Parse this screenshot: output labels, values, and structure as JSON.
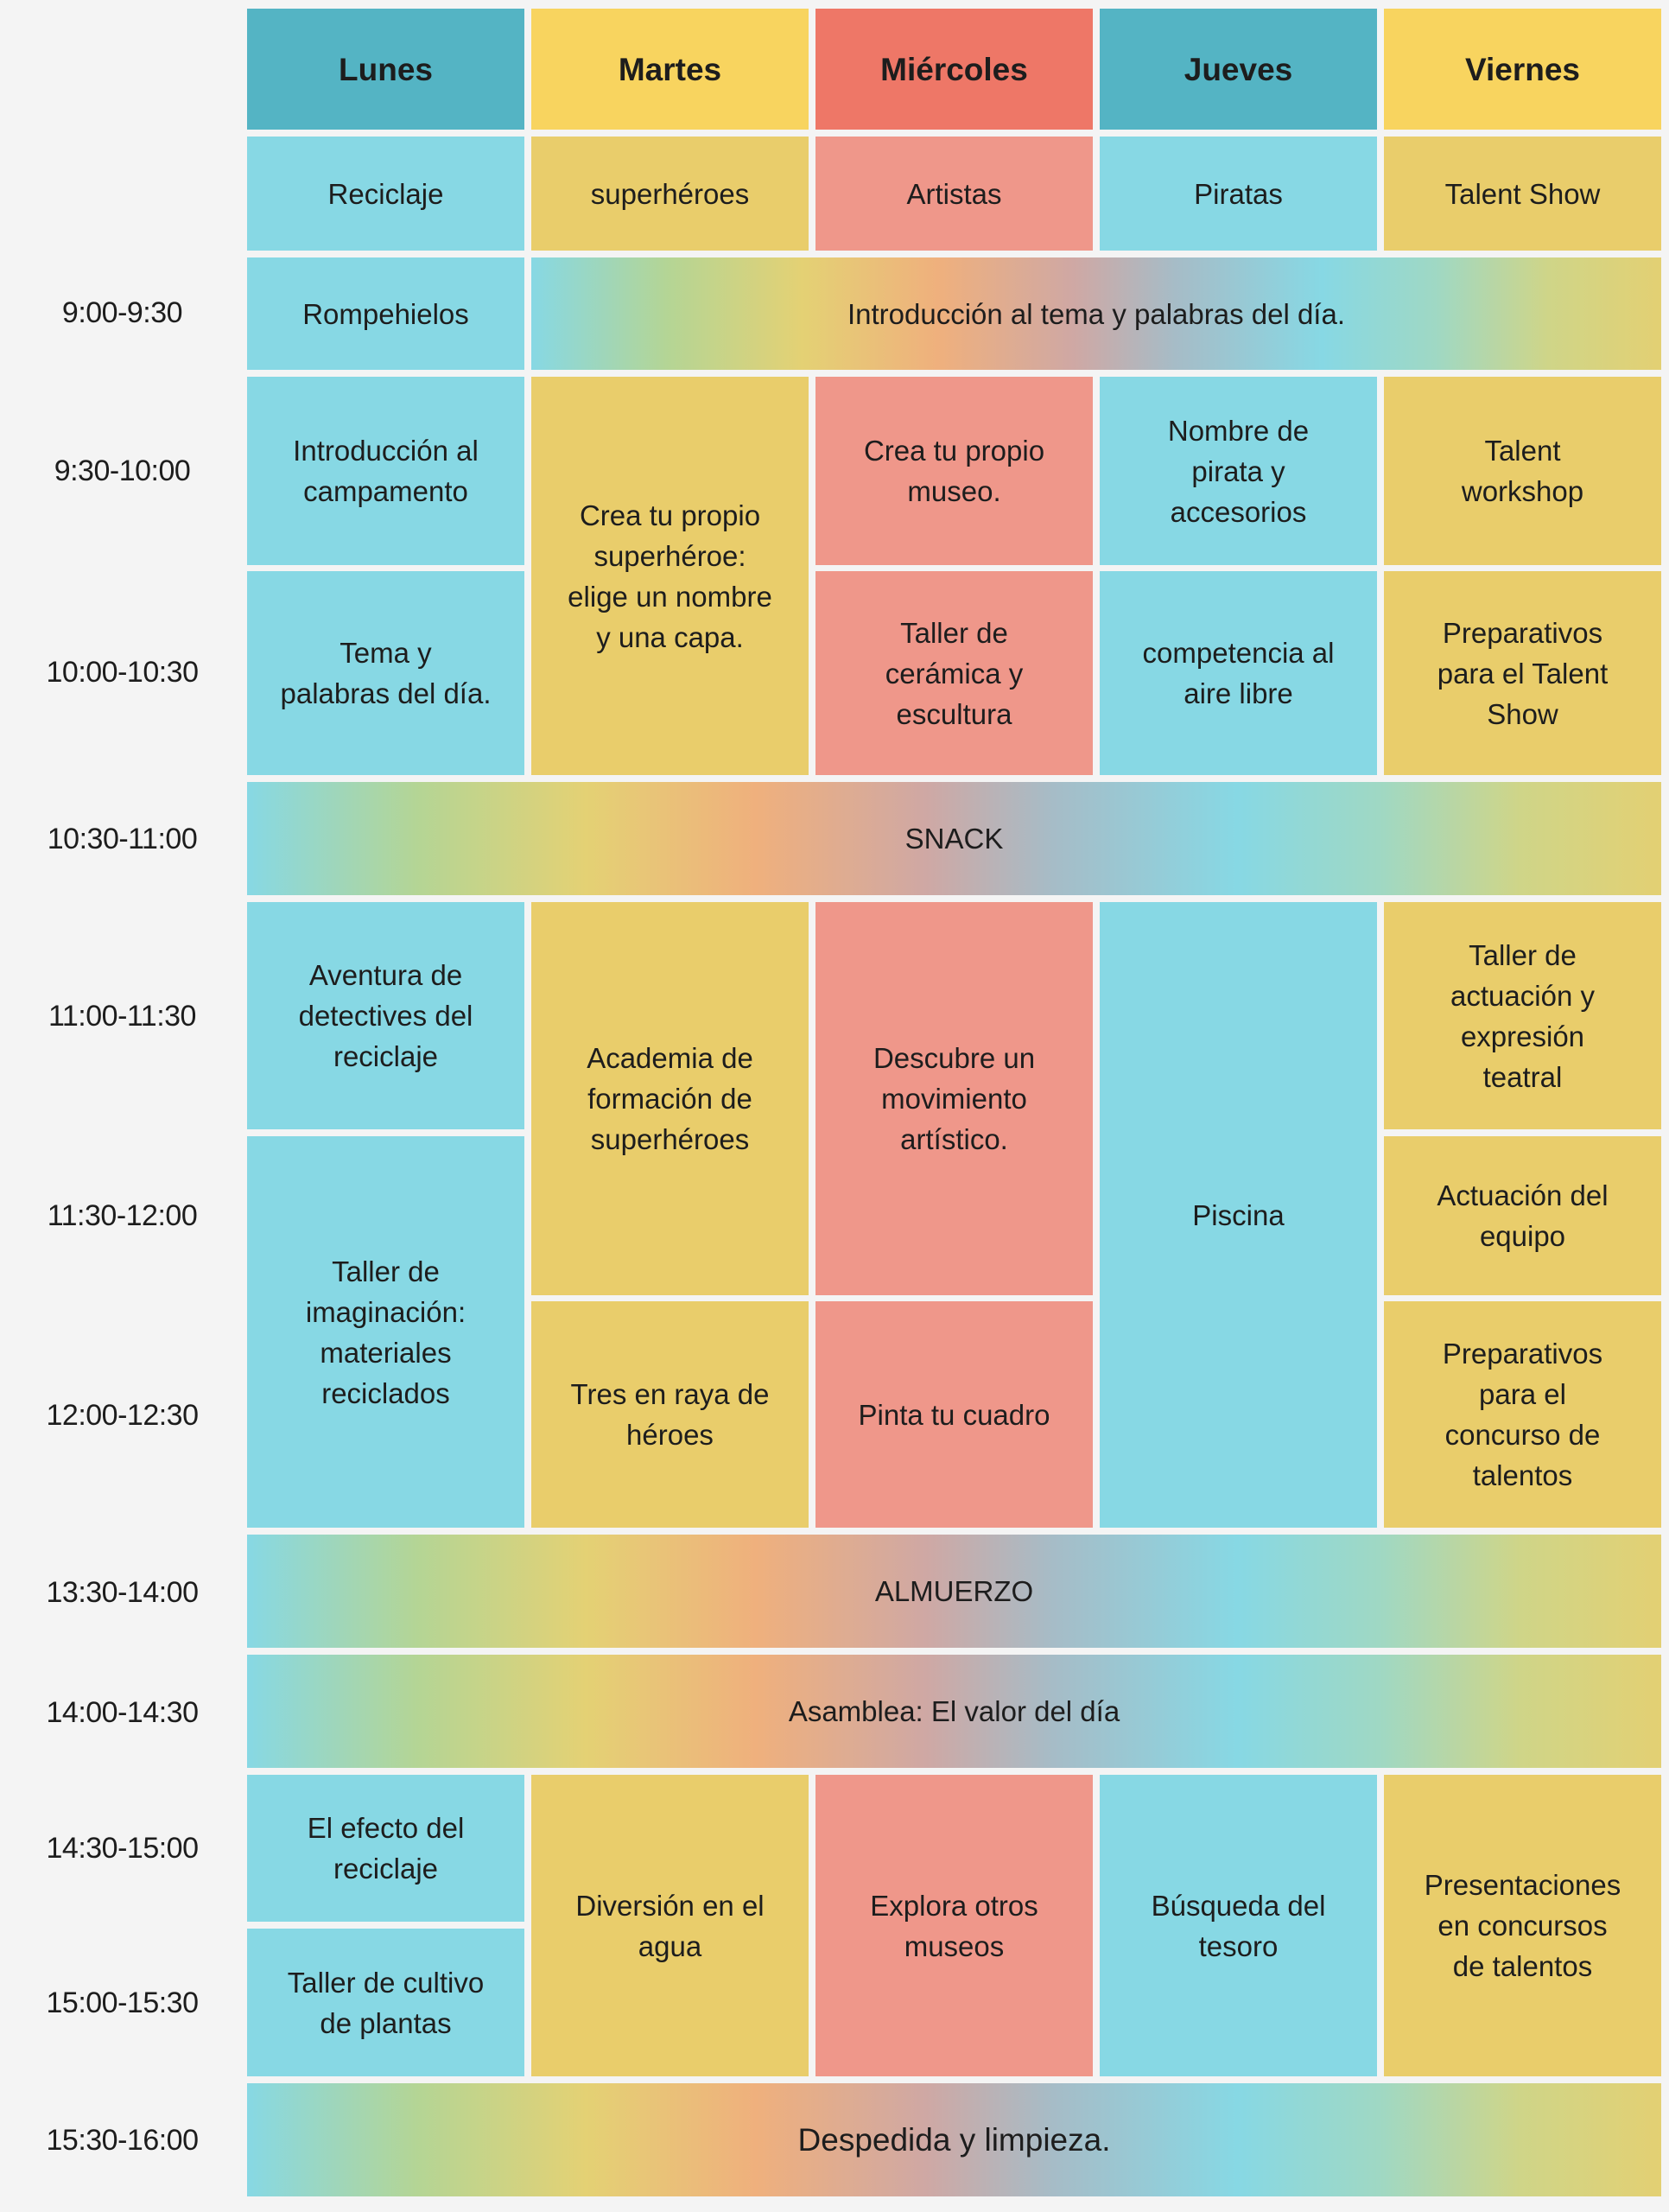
{
  "days": [
    "Lunes",
    "Martes",
    "Miércoles",
    "Jueves",
    "Viernes"
  ],
  "themes": [
    "Reciclaje",
    "superhéroes",
    "Artistas",
    "Piratas",
    "Talent Show"
  ],
  "times": {
    "t0900": "9:00-9:30",
    "t0930": "9:30-10:00",
    "t1000": "10:00-10:30",
    "t1030": "10:30-11:00",
    "t1100": "11:00-11:30",
    "t1130": "11:30-12:00",
    "t1200": "12:00-12:30",
    "t1330": "13:30-14:00",
    "t1400": "14:00-14:30",
    "t1430": "14:30-15:00",
    "t1500": "15:00-15:30",
    "t1530": "15:30-16:00"
  },
  "activities": {
    "rompehielos": "Rompehielos",
    "intro_tema": "Introducción al tema y palabras del día.",
    "intro_campamento": "Introducción al\ncampamento",
    "tema_palabras": "Tema y\npalabras del día.",
    "crea_superheroe": "Crea tu propio\nsuperhéroe:\nelige un nombre\ny una capa.",
    "crea_museo": "Crea tu propio\nmuseo.",
    "taller_ceramica": "Taller de\ncerámica y\nescultura",
    "nombre_pirata": "Nombre de\npirata y\naccesorios",
    "competencia": "competencia al\naire libre",
    "talent_workshop": "Talent\nworkshop",
    "preparativos_show": "Preparativos\npara el Talent\nShow",
    "snack": "SNACK",
    "aventura_detectives": "Aventura de\ndetectives del\nreciclaje",
    "taller_imaginacion": "Taller de\nimaginación:\nmateriales\nreciclados",
    "academia": "Academia de\nformación de\nsuperhéroes",
    "tres_en_raya": "Tres en raya de\nhéroes",
    "descubre": "Descubre un\nmovimiento\nartístico.",
    "pinta": "Pinta tu cuadro",
    "piscina": "Piscina",
    "taller_actuacion": "Taller de\nactuación y\nexpresión\nteatral",
    "actuacion_equipo": "Actuación del\nequipo",
    "preparativos_concurso": "Preparativos\npara el\nconcurso de\ntalentos",
    "almuerzo": "ALMUERZO",
    "asamblea": "Asamblea: El valor del día",
    "efecto_reciclaje": "El efecto del\nreciclaje",
    "cultivo_plantas": "Taller de cultivo\nde plantas",
    "diversion_agua": "Diversión en el\nagua",
    "explora_museos": "Explora otros\nmuseos",
    "busqueda_tesoro": "Búsqueda del\ntesoro",
    "presentaciones": "Presentaciones\nen concursos\nde talentos",
    "despedida": "Despedida y limpieza."
  },
  "colors": {
    "blue": "#87d8e4",
    "yellow": "#e9cd6b",
    "red": "#ef978a",
    "header_blue": "#54b4c4",
    "header_yellow": "#f8d45f",
    "header_red": "#ee7767"
  }
}
